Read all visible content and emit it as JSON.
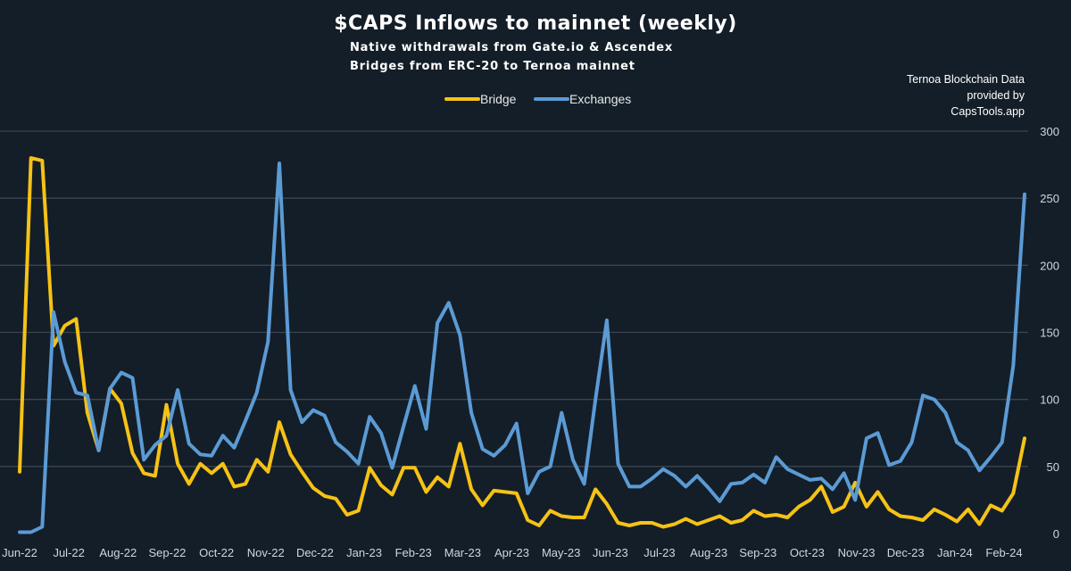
{
  "header": {
    "title": "$CAPS Inflows to mainnet (weekly)",
    "subtitle_1": "Native withdrawals from Gate.io & Ascendex",
    "subtitle_2": "Bridges from ERC-20 to Ternoa mainnet",
    "credit_1": "Ternoa Blockchain Data",
    "credit_2": "provided by",
    "credit_3": "CapsTools.app"
  },
  "colors": {
    "background": "#141e28",
    "bridge": "#f5c216",
    "exchanges": "#5b9bd5",
    "grid": "#3a4652"
  },
  "chart_data": {
    "type": "line",
    "title": "$CAPS Inflows to mainnet (weekly)",
    "ylim": [
      0,
      300
    ],
    "yticks": [
      "0",
      "50",
      "100",
      "150",
      "200",
      "250",
      "300"
    ],
    "y_axis_position": "right",
    "legend_position": "top-center",
    "grid": true,
    "month_labels": [
      "Jun-22",
      "Jul-22",
      "Aug-22",
      "Sep-22",
      "Oct-22",
      "Nov-22",
      "Dec-22",
      "Jan-23",
      "Feb-23",
      "Mar-23",
      "Apr-23",
      "May-23",
      "Jun-23",
      "Jul-23",
      "Aug-23",
      "Sep-23",
      "Oct-23",
      "Nov-23",
      "Dec-23",
      "Jan-24",
      "Feb-24"
    ],
    "series": [
      {
        "name": "Bridge",
        "values": [
          46,
          280,
          278,
          140,
          155,
          160,
          90,
          62,
          108,
          97,
          60,
          45,
          43,
          96,
          52,
          37,
          52,
          45,
          52,
          35,
          37,
          55,
          46,
          83,
          59,
          46,
          34,
          28,
          26,
          14,
          17,
          49,
          36,
          29,
          49,
          49,
          31,
          42,
          35,
          67,
          33,
          21,
          32,
          31,
          30,
          10,
          6,
          17,
          13,
          12,
          12,
          33,
          22,
          8,
          6,
          8,
          8,
          5,
          7,
          11,
          7,
          10,
          13,
          8,
          10,
          17,
          13,
          14,
          12,
          20,
          25,
          35,
          16,
          20,
          38,
          20,
          31,
          18,
          13,
          12,
          10,
          18,
          14,
          9,
          18,
          7,
          21,
          17,
          30,
          71
        ]
      },
      {
        "name": "Exchanges",
        "values": [
          1,
          1,
          5,
          165,
          128,
          105,
          103,
          62,
          108,
          120,
          116,
          55,
          66,
          73,
          107,
          67,
          59,
          58,
          73,
          64,
          84,
          105,
          143,
          276,
          107,
          83,
          92,
          88,
          68,
          61,
          52,
          87,
          75,
          49,
          80,
          110,
          78,
          157,
          172,
          148,
          90,
          63,
          58,
          66,
          82,
          30,
          46,
          50,
          90,
          55,
          37,
          100,
          159,
          52,
          35,
          35,
          41,
          48,
          43,
          35,
          43,
          34,
          24,
          37,
          38,
          44,
          38,
          57,
          48,
          44,
          40,
          41,
          33,
          45,
          25,
          71,
          75,
          51,
          54,
          68,
          103,
          100,
          90,
          68,
          62,
          47,
          57,
          68,
          125,
          253
        ]
      }
    ]
  }
}
